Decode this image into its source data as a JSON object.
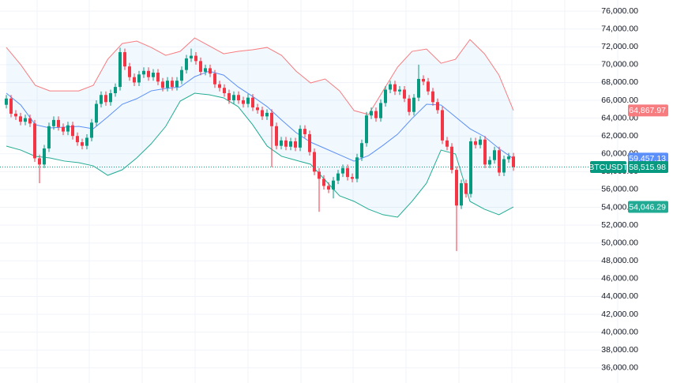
{
  "chart_data": {
    "type": "candlestick",
    "symbol": "BTCUSDT",
    "last_label": "58,515.98",
    "up_color": "#089981",
    "down_color": "#f23645",
    "open": [
      65500,
      66200,
      64500,
      64200,
      63600,
      64000,
      63400,
      59500,
      58800,
      60600,
      63100,
      63800,
      63000,
      62500,
      63200,
      62000,
      61300,
      60900,
      61800,
      63500,
      65600,
      66600,
      65800,
      66800,
      67500,
      71400,
      69800,
      68600,
      68000,
      68900,
      69300,
      68600,
      69100,
      68100,
      67400,
      68200,
      67500,
      68200,
      69400,
      70700,
      71000,
      70400,
      69200,
      69600,
      69000,
      67800,
      67400,
      66800,
      66000,
      66600,
      66000,
      65600,
      66300,
      65200,
      64900,
      64200,
      64600,
      63100,
      60900,
      61500,
      60800,
      61400,
      60700,
      62800,
      62200,
      60200,
      58000,
      57200,
      56400,
      56000,
      57000,
      57800,
      58400,
      57400,
      57200,
      59600,
      61200,
      64300,
      64800,
      64000,
      65700,
      67200,
      67800,
      67000,
      67200,
      66200,
      64700,
      66300,
      68400,
      68100,
      67000,
      65800,
      64900,
      61500,
      60800,
      58200,
      54200,
      56700,
      55500,
      61400,
      61000,
      61600,
      58800,
      59300,
      60400,
      57900,
      59400,
      59700
    ],
    "high": [
      66600,
      66600,
      64900,
      64600,
      64400,
      64400,
      63800,
      59900,
      61000,
      63500,
      64200,
      64200,
      63400,
      63600,
      63600,
      62400,
      61700,
      62200,
      63900,
      66000,
      67000,
      67000,
      67200,
      67900,
      71900,
      71800,
      70200,
      69000,
      69300,
      69700,
      69700,
      69500,
      69500,
      68500,
      68600,
      68600,
      68600,
      69800,
      71100,
      71800,
      71400,
      70800,
      70000,
      70000,
      69400,
      68200,
      67800,
      67200,
      67000,
      67000,
      66400,
      66700,
      66700,
      65600,
      65300,
      65000,
      65000,
      63500,
      61900,
      61900,
      61800,
      61800,
      63200,
      63200,
      62600,
      60600,
      58400,
      57600,
      56800,
      57400,
      58200,
      58800,
      58800,
      57800,
      60000,
      61600,
      64700,
      65200,
      65200,
      66100,
      67600,
      68200,
      68200,
      67600,
      67600,
      66600,
      66700,
      70000,
      68800,
      68500,
      67400,
      66200,
      65300,
      61900,
      61200,
      58600,
      57100,
      57100,
      61800,
      61800,
      62000,
      62000,
      59700,
      60800,
      60800,
      59800,
      60100,
      60100
    ],
    "low": [
      65100,
      64100,
      63800,
      63200,
      63200,
      63000,
      59100,
      56700,
      58400,
      60200,
      62700,
      62600,
      62100,
      62100,
      61600,
      60900,
      60500,
      60500,
      61400,
      63100,
      65200,
      65400,
      65400,
      66400,
      67100,
      69400,
      68200,
      67600,
      67600,
      68500,
      68200,
      68200,
      67700,
      67000,
      67000,
      67100,
      67100,
      67800,
      69000,
      70300,
      70000,
      68800,
      68800,
      68600,
      67400,
      67000,
      66400,
      65600,
      65600,
      65600,
      65200,
      65200,
      64800,
      64500,
      63800,
      63800,
      58500,
      60500,
      60500,
      60400,
      60400,
      60300,
      60300,
      61800,
      59800,
      57600,
      53500,
      56000,
      55600,
      55000,
      56600,
      57400,
      57000,
      56800,
      56800,
      59200,
      60800,
      63900,
      63600,
      63600,
      65300,
      66800,
      66600,
      66600,
      65800,
      64300,
      64300,
      65900,
      67700,
      66600,
      65400,
      64500,
      61100,
      60400,
      57800,
      49100,
      53800,
      55100,
      55100,
      60600,
      60600,
      58400,
      58400,
      58900,
      57500,
      57500,
      59000,
      58100
    ],
    "close": [
      66200,
      64500,
      64200,
      63600,
      64000,
      63400,
      59500,
      58800,
      60600,
      63100,
      63800,
      63000,
      62500,
      63200,
      62000,
      61300,
      60900,
      61800,
      63500,
      65600,
      66600,
      65800,
      66800,
      67500,
      71400,
      69800,
      68600,
      68000,
      68900,
      69300,
      68600,
      69100,
      68100,
      67400,
      68200,
      67500,
      68200,
      69400,
      70700,
      71000,
      70400,
      69200,
      69600,
      69000,
      67800,
      67400,
      66800,
      66000,
      66600,
      66000,
      65600,
      66300,
      65200,
      64900,
      64200,
      64600,
      63100,
      60900,
      61500,
      60800,
      61400,
      60700,
      62800,
      62200,
      60200,
      58000,
      57200,
      56400,
      56000,
      57000,
      57800,
      58400,
      57400,
      57200,
      59600,
      61200,
      64300,
      64800,
      64000,
      65700,
      67200,
      67800,
      67000,
      67200,
      66200,
      64700,
      66300,
      68400,
      68100,
      67000,
      65800,
      64900,
      61500,
      60800,
      58200,
      54200,
      56700,
      55500,
      61400,
      61000,
      61600,
      58800,
      59300,
      60400,
      57900,
      59400,
      59700,
      58515.98
    ],
    "series": [
      {
        "color": "#f77c80",
        "last_label": "64,867.97",
        "values": [
          71930,
          69980,
          67680,
          67060,
          67060,
          67060,
          67680,
          70600,
          72370,
          72640,
          71930,
          71040,
          71490,
          72990,
          72110,
          71220,
          71490,
          71670,
          71930,
          71040,
          69270,
          67950,
          68390,
          67060,
          64850,
          64410,
          67060,
          69720,
          71490,
          71750,
          70160,
          70600,
          72810,
          71220,
          68830,
          64867.97
        ]
      },
      {
        "color": "#5b8ff9",
        "last_label": "59,457.13",
        "values": [
          66800,
          65470,
          63260,
          62900,
          62990,
          63080,
          62810,
          64140,
          65560,
          66180,
          67060,
          67330,
          67500,
          68650,
          69270,
          68830,
          67500,
          66440,
          65290,
          63790,
          62370,
          61310,
          60600,
          59890,
          59180,
          59800,
          60950,
          62190,
          63960,
          65560,
          65470,
          64140,
          62810,
          61930,
          60600,
          59457.13
        ]
      },
      {
        "color": "#22ab94",
        "last_label": "54,046.29",
        "values": [
          60870,
          60420,
          59720,
          59540,
          59190,
          59010,
          58650,
          57590,
          58210,
          59540,
          61130,
          63080,
          65910,
          66800,
          66620,
          66270,
          65290,
          63260,
          60870,
          59720,
          59270,
          58830,
          57060,
          55290,
          54670,
          53790,
          53170,
          52900,
          54670,
          56710,
          60420,
          59980,
          54670,
          53790,
          53170,
          54046.29
        ]
      }
    ],
    "band_fill": "rgba(33,150,243,0.06)",
    "ylim": [
      34300,
      77250
    ],
    "yticks": [
      {
        "value": 36000,
        "label": "36,000.00"
      },
      {
        "value": 38000,
        "label": "38,000.00"
      },
      {
        "value": 40000,
        "label": "40,000.00"
      },
      {
        "value": 42000,
        "label": "42,000.00"
      },
      {
        "value": 44000,
        "label": "44,000.00"
      },
      {
        "value": 46000,
        "label": "46,000.00"
      },
      {
        "value": 48000,
        "label": "48,000.00"
      },
      {
        "value": 50000,
        "label": "50,000.00"
      },
      {
        "value": 52000,
        "label": "52,000.00"
      },
      {
        "value": 54000,
        "label": "54,000.00"
      },
      {
        "value": 56000,
        "label": "56,000.00"
      },
      {
        "value": 58000,
        "label": "58,000.00"
      },
      {
        "value": 60000,
        "label": "60,000.00"
      },
      {
        "value": 62000,
        "label": "62,000.00"
      },
      {
        "value": 64000,
        "label": "64,000.00"
      },
      {
        "value": 66000,
        "label": "66,000.00"
      },
      {
        "value": 68000,
        "label": "68,000.00"
      },
      {
        "value": 70000,
        "label": "70,000.00"
      },
      {
        "value": 72000,
        "label": "72,000.00"
      },
      {
        "value": 74000,
        "label": "74,000.00"
      },
      {
        "value": 76000,
        "label": "76,000.00"
      }
    ],
    "grid": true
  }
}
